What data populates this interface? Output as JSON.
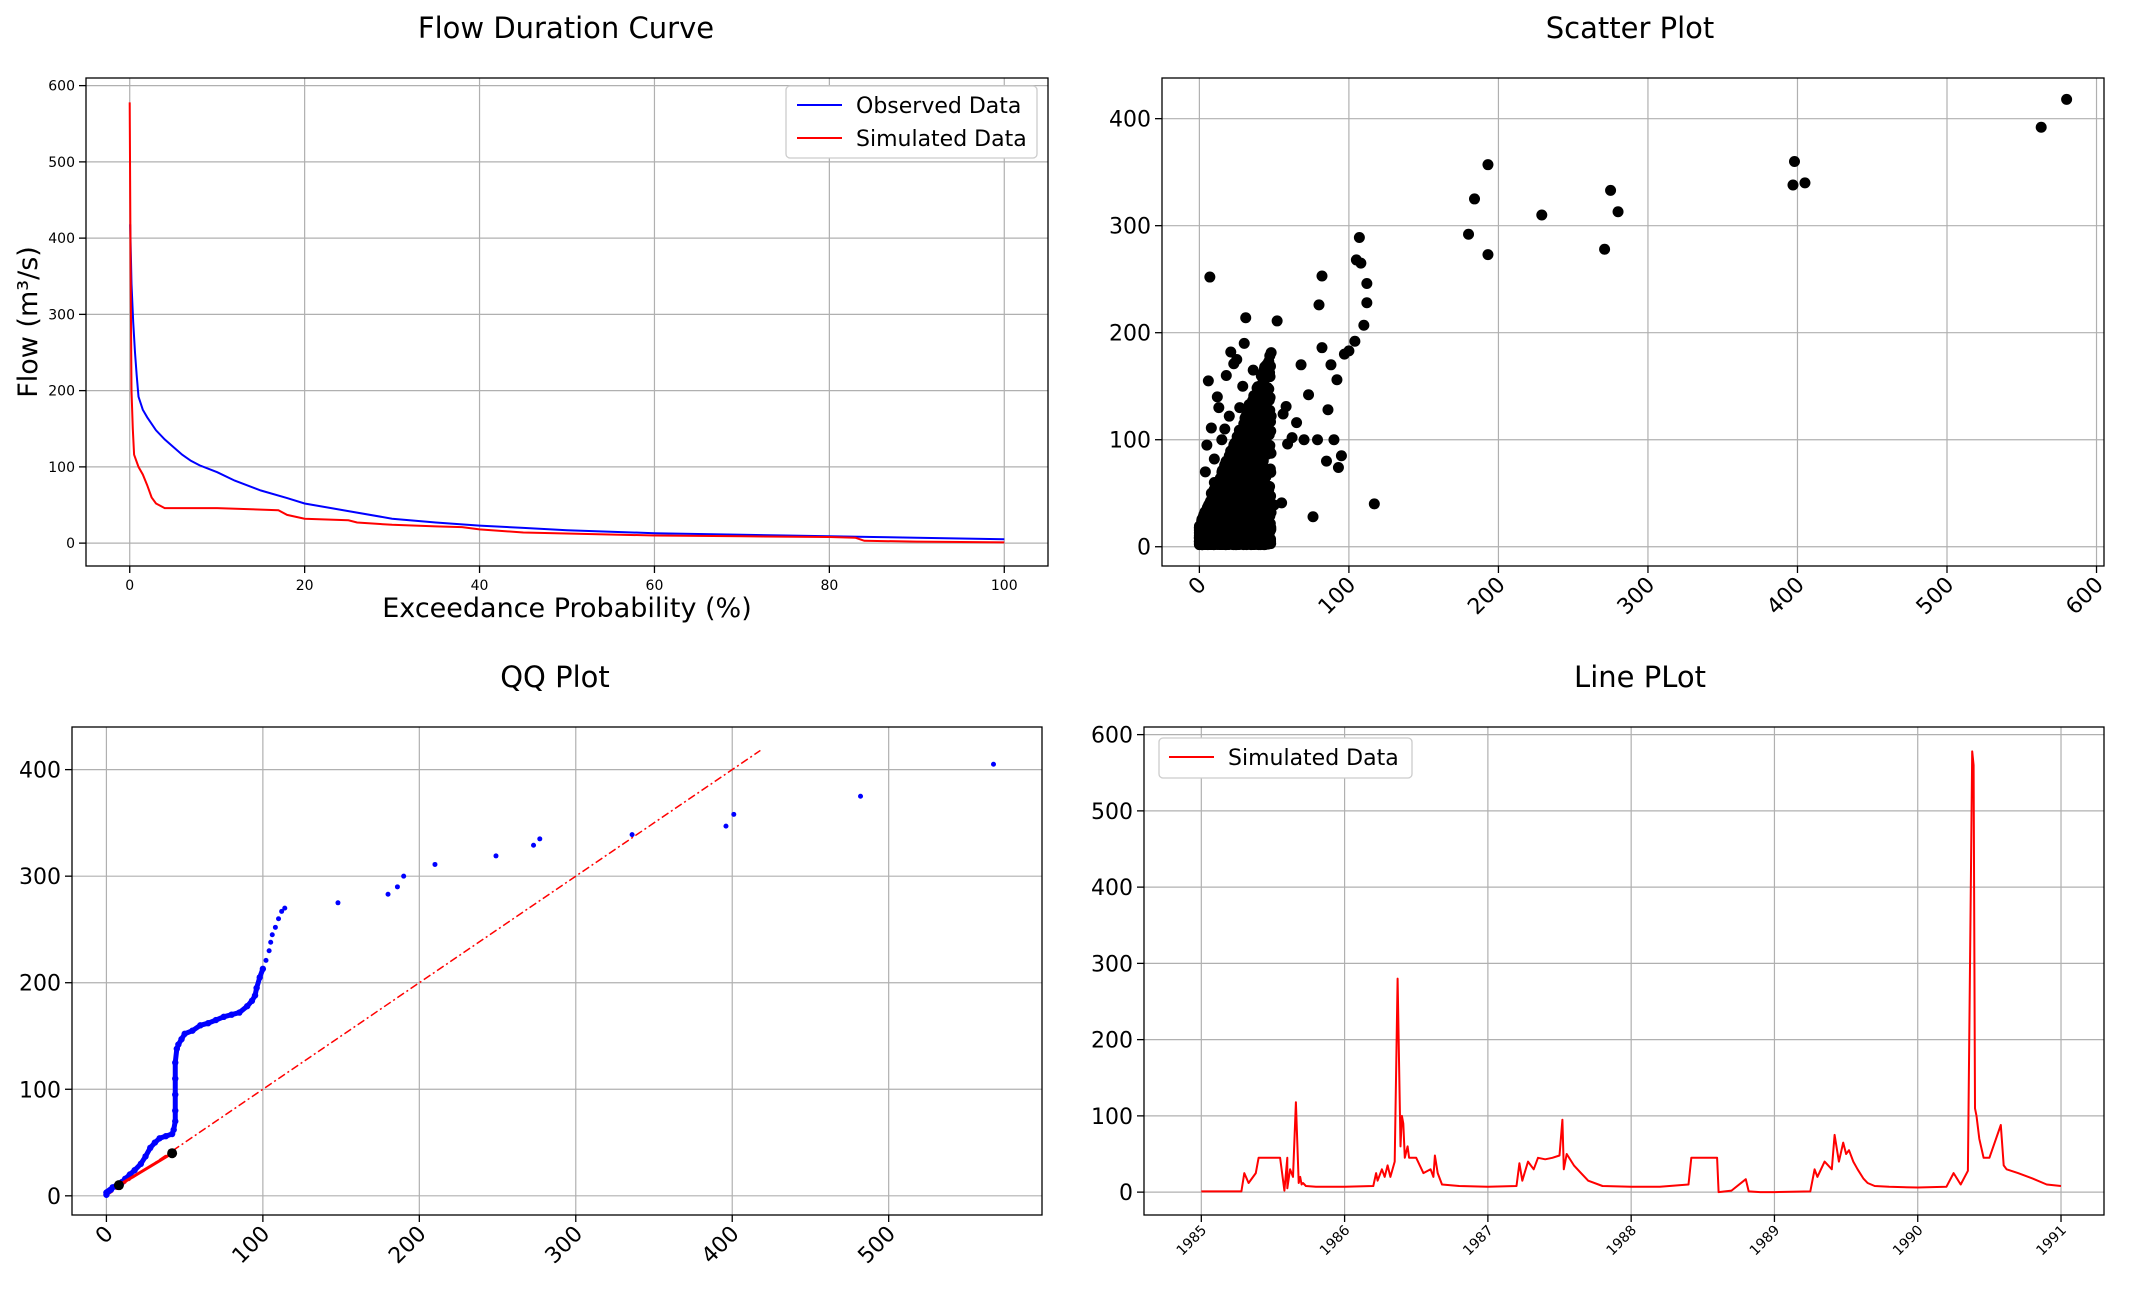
{
  "colors": {
    "observed": "#0000ff",
    "simulated": "#ff0000",
    "points": "#000000",
    "qq_points": "#0000ff",
    "grid": "#b0b0b0"
  },
  "chart_data": [
    {
      "id": "fdc",
      "type": "line",
      "title": "Flow Duration Curve",
      "xlabel": "Exceedance Probability (%)",
      "ylabel": "Flow (m³/s)",
      "xlim": [
        -5,
        105
      ],
      "ylim": [
        -30,
        610
      ],
      "xticks": [
        0,
        20,
        40,
        60,
        80,
        100
      ],
      "yticks": [
        0,
        100,
        200,
        300,
        400,
        500,
        600
      ],
      "grid": true,
      "legend_position": "top-right",
      "series": [
        {
          "name": "Observed Data",
          "color": "#0000ff",
          "x": [
            0.05,
            0.2,
            0.4,
            0.6,
            0.8,
            1.0,
            1.5,
            2,
            3,
            4,
            5,
            6,
            7,
            8,
            10,
            12,
            15,
            18,
            20,
            25,
            30,
            35,
            40,
            45,
            50,
            55,
            60,
            65,
            70,
            75,
            80,
            85,
            90,
            95,
            100
          ],
          "y": [
            418,
            340,
            290,
            250,
            220,
            192,
            175,
            165,
            148,
            136,
            126,
            116,
            108,
            102,
            93,
            82,
            69,
            59,
            52,
            42,
            32,
            27,
            23,
            20,
            17,
            15,
            13,
            12,
            11,
            10,
            9,
            8,
            7,
            6,
            5
          ]
        },
        {
          "name": "Simulated Data",
          "color": "#ff0000",
          "x": [
            0.0,
            0.1,
            0.2,
            0.35,
            0.5,
            1,
            1.5,
            2,
            2.5,
            3,
            4,
            6,
            10,
            15,
            17,
            18,
            20,
            25,
            26,
            30,
            35,
            38,
            40,
            45,
            60,
            70,
            80,
            83,
            84,
            90,
            100
          ],
          "y": [
            578,
            360,
            200,
            150,
            116,
            100,
            90,
            76,
            60,
            52,
            46,
            46,
            46,
            44,
            43,
            37,
            32,
            30,
            27,
            24,
            22,
            21,
            18,
            14,
            10,
            9,
            8,
            7,
            3,
            2,
            1
          ]
        }
      ]
    },
    {
      "id": "scatter",
      "type": "scatter",
      "title": "Scatter Plot",
      "xlabel": "",
      "ylabel": "",
      "xlim": [
        -25,
        605
      ],
      "ylim": [
        -18,
        438
      ],
      "xticks": [
        0,
        100,
        200,
        300,
        400,
        500,
        600
      ],
      "yticks": [
        0,
        100,
        200,
        300,
        400
      ],
      "grid": true,
      "points": [
        [
          580,
          418
        ],
        [
          563,
          392
        ],
        [
          405,
          340
        ],
        [
          397,
          338
        ],
        [
          398,
          360
        ],
        [
          280,
          313
        ],
        [
          275,
          333
        ],
        [
          271,
          278
        ],
        [
          229,
          310
        ],
        [
          193,
          357
        ],
        [
          193,
          273
        ],
        [
          184,
          325
        ],
        [
          180,
          292
        ],
        [
          117,
          40
        ],
        [
          112,
          228
        ],
        [
          112,
          246
        ],
        [
          110,
          207
        ],
        [
          108,
          265
        ],
        [
          107,
          289
        ],
        [
          105,
          268
        ],
        [
          104,
          192
        ],
        [
          100,
          183
        ],
        [
          97,
          180
        ],
        [
          95,
          85
        ],
        [
          93,
          74
        ],
        [
          92,
          156
        ],
        [
          90,
          100
        ],
        [
          88,
          170
        ],
        [
          86,
          128
        ],
        [
          85,
          80
        ],
        [
          82,
          186
        ],
        [
          82,
          253
        ],
        [
          80,
          226
        ],
        [
          79,
          100
        ],
        [
          76,
          28
        ],
        [
          73,
          142
        ],
        [
          70,
          100
        ],
        [
          68,
          170
        ],
        [
          65,
          116
        ],
        [
          62,
          102
        ],
        [
          59,
          96
        ],
        [
          58,
          131
        ],
        [
          56,
          124
        ],
        [
          55,
          41
        ],
        [
          52,
          211
        ],
        [
          50,
          39
        ],
        [
          48,
          122
        ],
        [
          45,
          170
        ],
        [
          44,
          140
        ],
        [
          43,
          100
        ],
        [
          41,
          78
        ],
        [
          40,
          128
        ],
        [
          38,
          55
        ],
        [
          36,
          165
        ],
        [
          35,
          60
        ],
        [
          33,
          110
        ],
        [
          31,
          214
        ],
        [
          30,
          190
        ],
        [
          29,
          150
        ],
        [
          27,
          130
        ],
        [
          25,
          175
        ],
        [
          23,
          171
        ],
        [
          22,
          91
        ],
        [
          21,
          182
        ],
        [
          20,
          122
        ],
        [
          18,
          160
        ],
        [
          17,
          110
        ],
        [
          15,
          100
        ],
        [
          14,
          64
        ],
        [
          13,
          130
        ],
        [
          12,
          140
        ],
        [
          11,
          40
        ],
        [
          10,
          82
        ],
        [
          8,
          111
        ],
        [
          7,
          252
        ],
        [
          6,
          155
        ],
        [
          5,
          95
        ],
        [
          4,
          70
        ],
        [
          3,
          30
        ],
        [
          2,
          12
        ],
        [
          1,
          8
        ],
        [
          0,
          5
        ],
        [
          1,
          15
        ],
        [
          3,
          10
        ],
        [
          5,
          25
        ],
        [
          8,
          50
        ],
        [
          10,
          60
        ],
        [
          12,
          35
        ],
        [
          15,
          45
        ],
        [
          18,
          70
        ],
        [
          20,
          85
        ],
        [
          22,
          40
        ],
        [
          25,
          55
        ],
        [
          28,
          65
        ],
        [
          30,
          30
        ],
        [
          33,
          85
        ],
        [
          35,
          45
        ],
        [
          38,
          60
        ],
        [
          40,
          95
        ],
        [
          42,
          25
        ],
        [
          44,
          110
        ],
        [
          46,
          70
        ],
        [
          10,
          20
        ],
        [
          14,
          30
        ],
        [
          16,
          12
        ],
        [
          19,
          25
        ],
        [
          24,
          20
        ],
        [
          26,
          100
        ],
        [
          32,
          35
        ],
        [
          36,
          100
        ],
        [
          39,
          15
        ],
        [
          45,
          40
        ]
      ],
      "points_note": "",
      "clusters": [
        {
          "x_range": [
            0,
            48
          ],
          "y_range": [
            2,
            185
          ],
          "count": 1800
        }
      ]
    },
    {
      "id": "qq",
      "type": "scatter",
      "title": "QQ Plot",
      "xlabel": "",
      "ylabel": "",
      "xlim": [
        -22,
        598
      ],
      "ylim": [
        -18,
        440
      ],
      "xticks": [
        0,
        100,
        200,
        300,
        400,
        500
      ],
      "yticks": [
        0,
        100,
        200,
        300,
        400
      ],
      "grid": true,
      "reference_line": {
        "x": [
          0,
          418
        ],
        "y": [
          0,
          418
        ],
        "color": "#ff0000",
        "style": "dashdot"
      },
      "points": [
        [
          567,
          405
        ],
        [
          482,
          375
        ],
        [
          401,
          358
        ],
        [
          396,
          347
        ],
        [
          336,
          339
        ],
        [
          277,
          335
        ],
        [
          273,
          329
        ],
        [
          249,
          319
        ],
        [
          210,
          311
        ],
        [
          190,
          300
        ],
        [
          186,
          290
        ],
        [
          180,
          283
        ],
        [
          148,
          275
        ],
        [
          114,
          270
        ],
        [
          112,
          267
        ],
        [
          110,
          260
        ],
        [
          108,
          252
        ],
        [
          106,
          245
        ],
        [
          105,
          238
        ],
        [
          104,
          230
        ],
        [
          102,
          221
        ],
        [
          100,
          213
        ],
        [
          98,
          205
        ],
        [
          96,
          195
        ],
        [
          95,
          188
        ],
        [
          93,
          183
        ],
        [
          90,
          178
        ],
        [
          85,
          172
        ],
        [
          80,
          170
        ],
        [
          75,
          168
        ],
        [
          70,
          165
        ],
        [
          65,
          162
        ],
        [
          60,
          160
        ],
        [
          55,
          155
        ],
        [
          50,
          152
        ],
        [
          48,
          147
        ],
        [
          46,
          142
        ],
        [
          45,
          138
        ],
        [
          44,
          125
        ],
        [
          44,
          110
        ],
        [
          44,
          95
        ],
        [
          44,
          80
        ],
        [
          44,
          70
        ],
        [
          43,
          62
        ],
        [
          42,
          58
        ],
        [
          38,
          56
        ],
        [
          34,
          54
        ],
        [
          31,
          50
        ],
        [
          28,
          45
        ],
        [
          25,
          37
        ],
        [
          22,
          30
        ],
        [
          18,
          24
        ],
        [
          15,
          20
        ],
        [
          12,
          16
        ],
        [
          10,
          13
        ],
        [
          8,
          11
        ],
        [
          6,
          9
        ],
        [
          4,
          8
        ],
        [
          3,
          6
        ],
        [
          2,
          5
        ],
        [
          1,
          4
        ],
        [
          0,
          3
        ],
        [
          0,
          1
        ]
      ],
      "segment_points": [
        [
          8,
          10
        ],
        [
          42,
          40
        ]
      ]
    },
    {
      "id": "line",
      "type": "line",
      "title": "Line PLot",
      "xlabel": "",
      "ylabel": "",
      "xlim": [
        1984.6,
        1991.3
      ],
      "ylim": [
        -30,
        610
      ],
      "xticks": [
        "1985",
        "1986",
        "1987",
        "1988",
        "1989",
        "1990",
        "1991"
      ],
      "yticks": [
        0,
        100,
        200,
        300,
        400,
        500,
        600
      ],
      "grid": true,
      "legend_position": "top-left",
      "series": [
        {
          "name": "Simulated Data",
          "color": "#ff0000",
          "x": [
            1985.0,
            1985.28,
            1985.3,
            1985.33,
            1985.38,
            1985.4,
            1985.45,
            1985.5,
            1985.55,
            1985.58,
            1985.6,
            1985.6,
            1985.62,
            1985.64,
            1985.66,
            1985.68,
            1985.69,
            1985.7,
            1985.71,
            1985.73,
            1985.8,
            1986.0,
            1986.2,
            1986.22,
            1986.23,
            1986.26,
            1986.28,
            1986.3,
            1986.32,
            1986.35,
            1986.37,
            1986.39,
            1986.4,
            1986.41,
            1986.42,
            1986.44,
            1986.45,
            1986.5,
            1986.55,
            1986.6,
            1986.62,
            1986.63,
            1986.65,
            1986.68,
            1986.8,
            1987.0,
            1987.2,
            1987.22,
            1987.24,
            1987.28,
            1987.32,
            1987.35,
            1987.4,
            1987.45,
            1987.5,
            1987.52,
            1987.53,
            1987.55,
            1987.6,
            1987.65,
            1987.7,
            1987.8,
            1988.0,
            1988.2,
            1988.4,
            1988.42,
            1988.6,
            1988.61,
            1988.7,
            1988.8,
            1988.82,
            1988.9,
            1989.0,
            1989.25,
            1989.28,
            1989.3,
            1989.35,
            1989.4,
            1989.42,
            1989.45,
            1989.48,
            1989.5,
            1989.52,
            1989.55,
            1989.58,
            1989.62,
            1989.65,
            1989.7,
            1989.8,
            1990.0,
            1990.2,
            1990.25,
            1990.3,
            1990.35,
            1990.38,
            1990.39,
            1990.4,
            1990.41,
            1990.43,
            1990.46,
            1990.5,
            1990.58,
            1990.6,
            1990.62,
            1990.7,
            1990.8,
            1990.9,
            1991.0
          ],
          "y": [
            1,
            1,
            25,
            12,
            25,
            45,
            45,
            45,
            45,
            2,
            45,
            5,
            30,
            20,
            118,
            12,
            20,
            10,
            12,
            8,
            7,
            7,
            8,
            25,
            15,
            30,
            20,
            35,
            20,
            40,
            280,
            60,
            100,
            90,
            45,
            60,
            45,
            45,
            25,
            30,
            20,
            48,
            25,
            10,
            8,
            7,
            8,
            38,
            15,
            40,
            30,
            45,
            43,
            45,
            48,
            95,
            30,
            50,
            35,
            25,
            15,
            8,
            7,
            7,
            10,
            45,
            45,
            0,
            2,
            17,
            1,
            0,
            0,
            1,
            30,
            20,
            40,
            30,
            75,
            40,
            65,
            50,
            55,
            40,
            30,
            18,
            12,
            8,
            7,
            6,
            7,
            25,
            10,
            28,
            578,
            560,
            110,
            100,
            70,
            45,
            45,
            88,
            35,
            30,
            25,
            18,
            10,
            8
          ]
        }
      ]
    }
  ]
}
